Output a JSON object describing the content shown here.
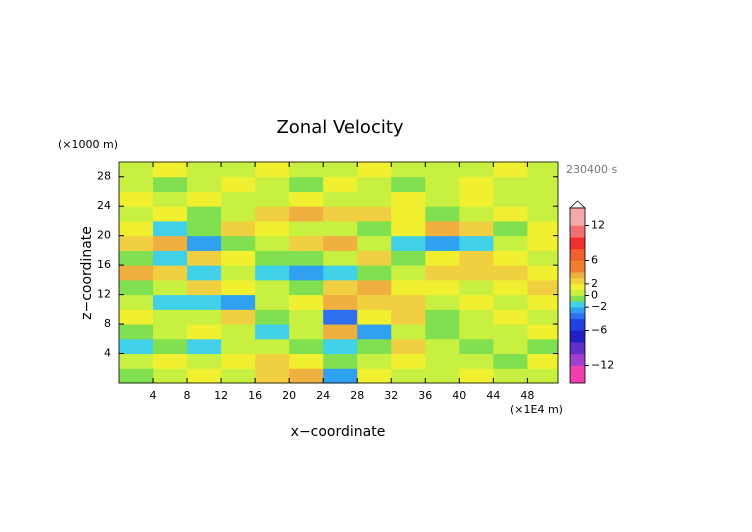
{
  "chart_data": {
    "type": "contour",
    "title": "Zonal Velocity",
    "y_unit": "(×1000 m)",
    "x_unit": "(×1E4 m)",
    "time_label": "230400 s",
    "xlabel": "x−coordinate",
    "ylabel": "z−coordinate",
    "xlim": [
      0,
      51.6
    ],
    "ylim": [
      0,
      30
    ],
    "xticks": [
      4,
      8,
      12,
      16,
      20,
      24,
      28,
      32,
      36,
      40,
      44,
      48
    ],
    "yticks": [
      4,
      8,
      12,
      16,
      20,
      24,
      28
    ],
    "x": [
      2,
      6,
      10,
      14,
      18,
      22,
      26,
      30,
      34,
      38,
      42,
      46,
      50
    ],
    "y": [
      1,
      3,
      5,
      7,
      9,
      11,
      13,
      15,
      17,
      19,
      21,
      23,
      25,
      27,
      29
    ],
    "values": [
      [
        -0.5,
        0,
        1,
        0.5,
        2,
        3,
        -3,
        1,
        0,
        0.5,
        1,
        0,
        0.5
      ],
      [
        0.5,
        1,
        0,
        1,
        2,
        1,
        -1,
        0,
        1,
        0,
        0.5,
        -1,
        1
      ],
      [
        -1.5,
        -1,
        -2,
        0,
        0,
        -1,
        -2,
        -1,
        2,
        0,
        -1,
        0.5,
        -0.5
      ],
      [
        -1,
        0.5,
        1,
        0.5,
        -1.5,
        0,
        3,
        -3,
        0,
        -1,
        0.5,
        0,
        1
      ],
      [
        1,
        0.5,
        0.5,
        2,
        -1,
        0,
        -4,
        1,
        2,
        -1,
        0,
        1,
        0.5
      ],
      [
        0,
        -2,
        -1.5,
        -3,
        0.5,
        1,
        3,
        2,
        2,
        0,
        1,
        0,
        1
      ],
      [
        -0.5,
        0.5,
        2,
        1,
        0,
        -1,
        2,
        3,
        1,
        1,
        0,
        1,
        2.5
      ],
      [
        3,
        2.5,
        -2,
        0,
        -1.5,
        -3,
        -2,
        -1,
        0.5,
        2,
        2.5,
        2,
        1
      ],
      [
        -1,
        -2,
        2,
        1,
        -1,
        -1,
        0,
        2,
        -1,
        1,
        2,
        1,
        0.5
      ],
      [
        2,
        3,
        -3,
        -0.5,
        0,
        2,
        3,
        0.5,
        -2,
        -3,
        -2,
        0,
        1
      ],
      [
        1,
        -1.5,
        -1,
        2,
        1,
        0.5,
        0,
        -0.5,
        1,
        3,
        2,
        -0.5,
        1
      ],
      [
        0.5,
        1,
        -0.5,
        0,
        2,
        3,
        2,
        2,
        1,
        -0.5,
        0,
        1,
        0.5
      ],
      [
        1,
        0.5,
        1,
        0.5,
        0,
        1,
        0.5,
        0,
        1,
        0.5,
        1,
        0,
        0.5
      ],
      [
        0.5,
        -0.5,
        0,
        1,
        0.5,
        -0.5,
        1,
        0.5,
        -0.5,
        0,
        1,
        0.5,
        0
      ],
      [
        0,
        1,
        0,
        0.5,
        1,
        0,
        0.5,
        1,
        0,
        0.5,
        0,
        1,
        0.5
      ]
    ],
    "colorbar": {
      "lim": [
        -15,
        15
      ],
      "levels": [
        -15,
        -12,
        -10,
        -8,
        -6,
        -4,
        -3,
        -2,
        -1,
        0,
        1,
        2,
        3,
        4,
        6,
        8,
        10,
        12,
        15
      ],
      "colors": [
        "#f040b0",
        "#a040d0",
        "#6030c8",
        "#2020c0",
        "#2040e0",
        "#3070f0",
        "#30a0f0",
        "#40d0e8",
        "#80e050",
        "#c8f040",
        "#f0f030",
        "#f0d040",
        "#f0b040",
        "#f08030",
        "#f06030",
        "#f03030",
        "#f07070",
        "#f4a8a8"
      ],
      "ticks": [
        {
          "value": 12,
          "label": "12"
        },
        {
          "value": 6,
          "label": "6"
        },
        {
          "value": 2,
          "label": "2"
        },
        {
          "value": 0,
          "label": "0"
        },
        {
          "value": -2,
          "label": "−2"
        },
        {
          "value": -6,
          "label": "−6"
        },
        {
          "value": -12,
          "label": "−12"
        }
      ]
    }
  }
}
